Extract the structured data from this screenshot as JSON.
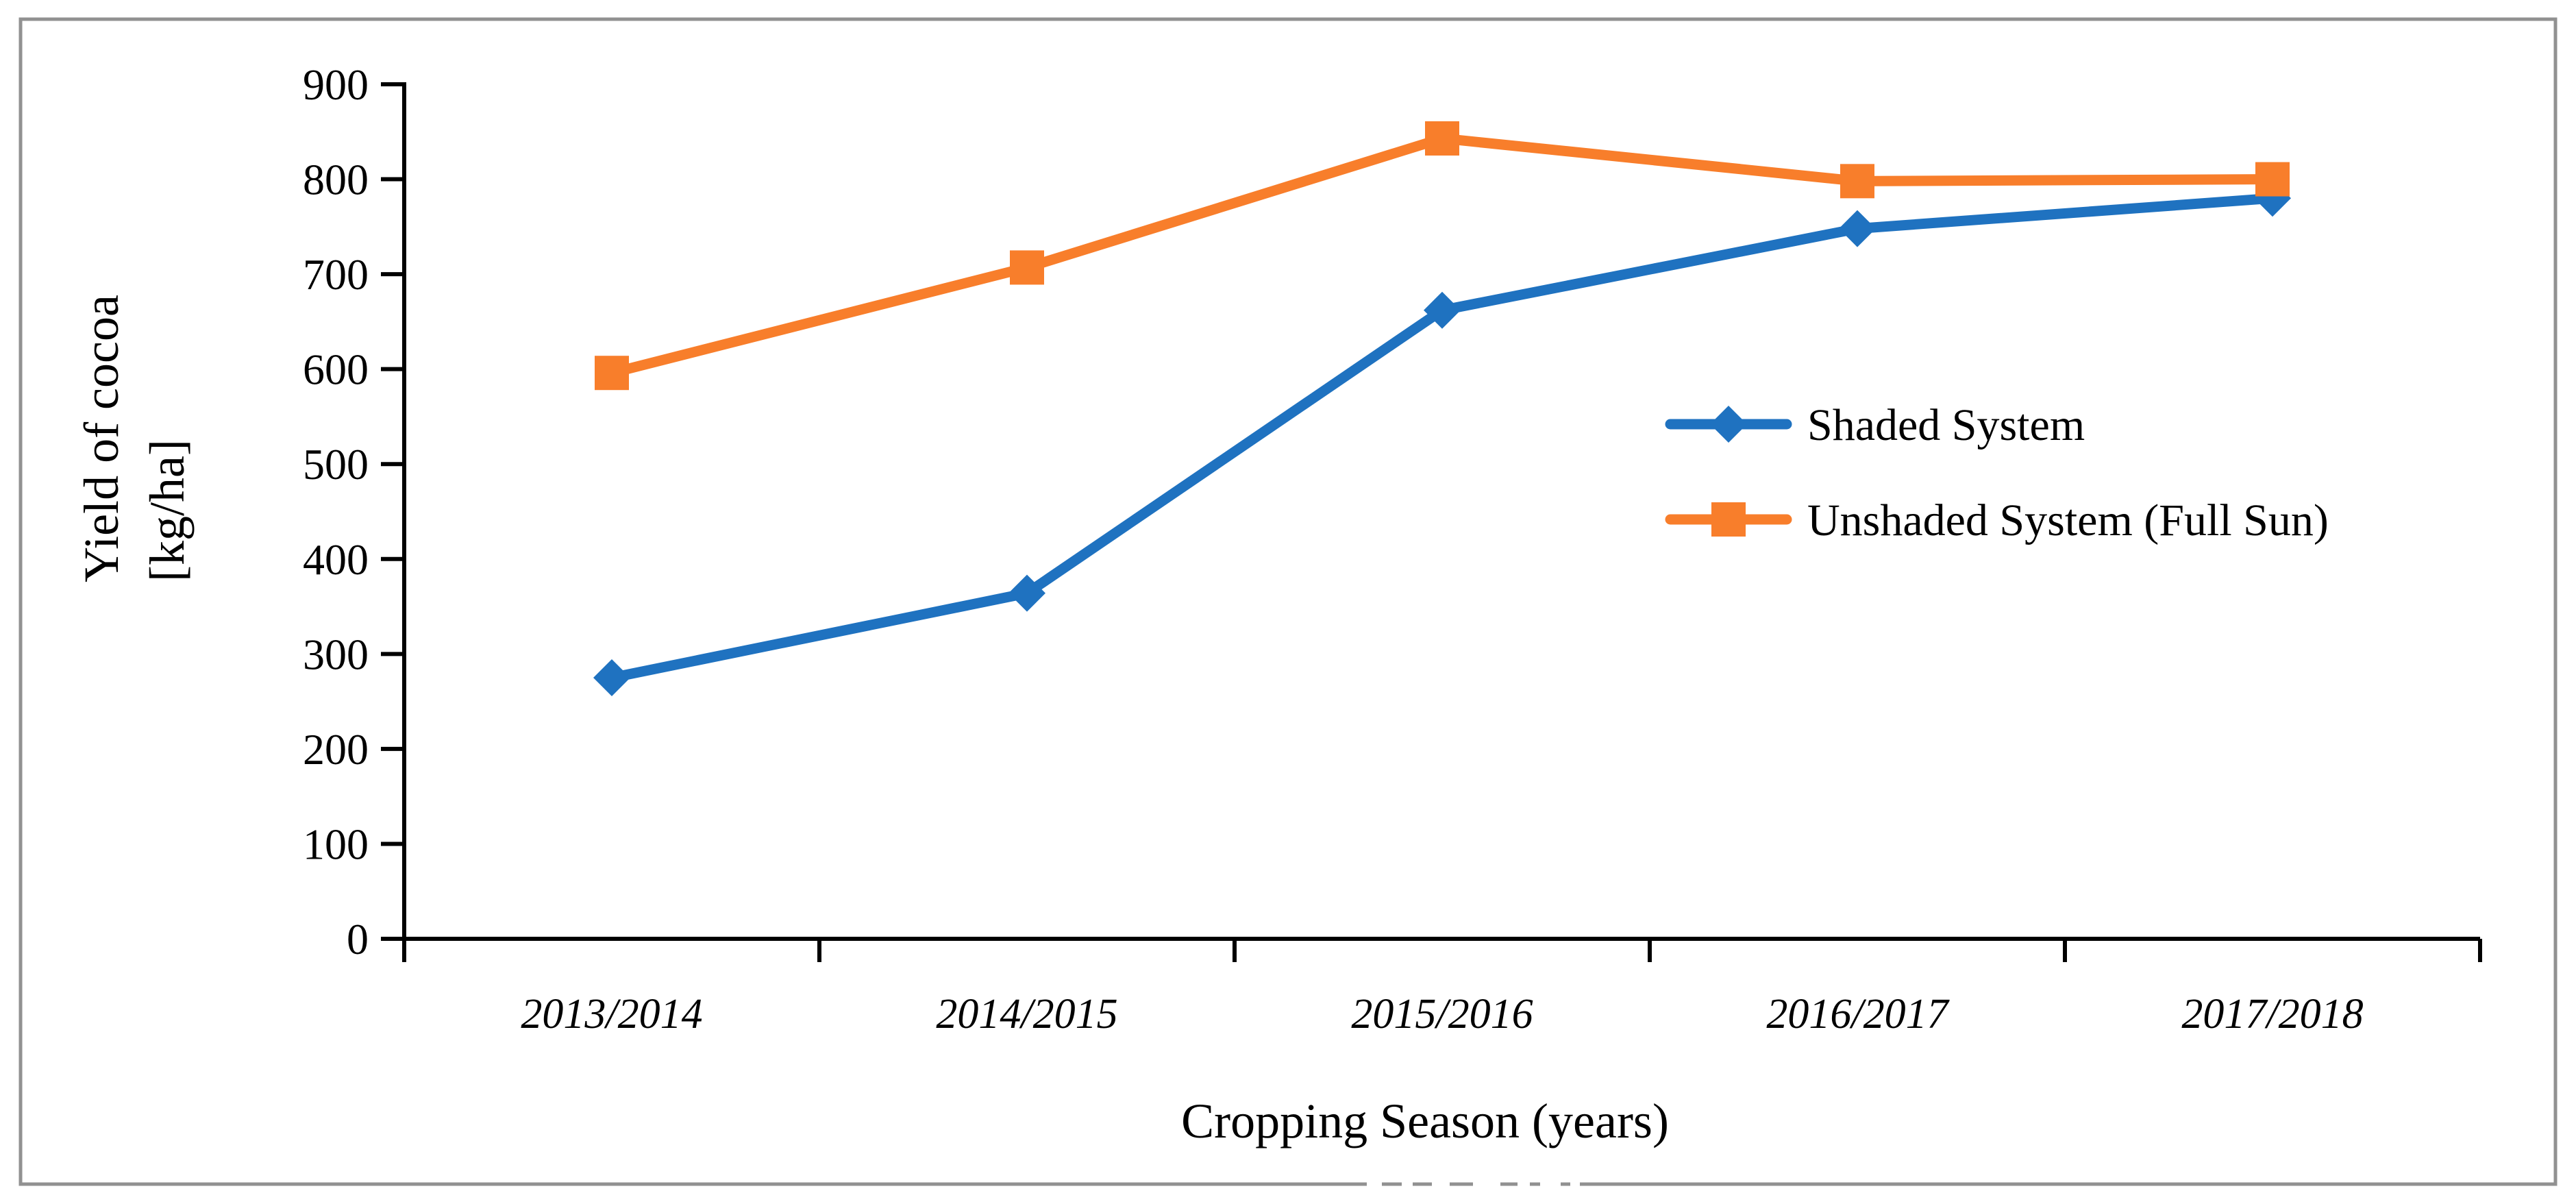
{
  "figure": {
    "background_color": "#ffffff",
    "border_color": "#919191",
    "axis_color": "#000000"
  },
  "chart_data": {
    "type": "line",
    "title": "",
    "categories": [
      "2013/2014",
      "2014/2015",
      "2015/2016",
      "2016/2017",
      "2017/2018"
    ],
    "series": [
      {
        "name": "Shaded System",
        "values": [
          275,
          364,
          662,
          748,
          780
        ],
        "color": "#1F72C0",
        "marker": "diamond"
      },
      {
        "name": "Unshaded System (Full Sun)",
        "values": [
          596,
          707,
          843,
          798,
          800
        ],
        "color": "#F87E2B",
        "marker": "square"
      }
    ],
    "xlabel": "Cropping Season (years)",
    "ylabel_line1": "Yield of cocoa",
    "ylabel_line2": "[kg/ha]",
    "ylim": [
      0,
      900
    ],
    "ytick_step": 100,
    "ytick_labels": [
      "0",
      "100",
      "200",
      "300",
      "400",
      "500",
      "600",
      "700",
      "800",
      "900"
    ],
    "grid": false,
    "legend_position": "inside-right-middle"
  }
}
